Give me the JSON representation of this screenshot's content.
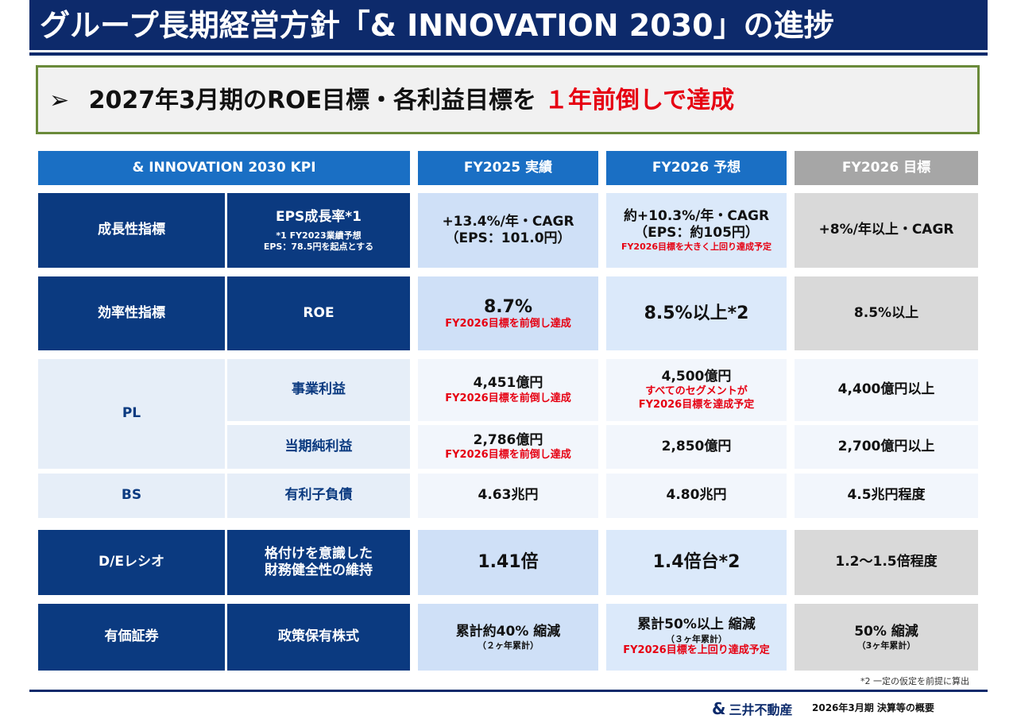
{
  "header": {
    "title": "グループ長期経営方針「& INNOVATION 2030」の進捗",
    "headline_bullet": "➢",
    "headline_main": "2027年3月期のROE目標・各利益目標を",
    "headline_highlight": "１年前倒しで達成"
  },
  "table": {
    "columns": [
      "& INNOVATION 2030 KPI",
      "FY2025 実績",
      "FY2026 予想",
      "FY2026 目標"
    ],
    "rows": {
      "eps": {
        "category": "成長性指標",
        "metric": "EPS成長率*1",
        "metric_note1": "*1 FY2023業績予想",
        "metric_note2": "EPS：78.5円を起点とする",
        "fy25_main": "+13.4%/年・CAGR",
        "fy25_sub": "（EPS：101.0円）",
        "fy26f_main": "約+10.3%/年・CAGR",
        "fy26f_sub": "（EPS：約105円）",
        "fy26f_note": "FY2026目標を大きく上回り達成予定",
        "target": "+8%/年以上・CAGR"
      },
      "roe": {
        "category": "効率性指標",
        "metric": "ROE",
        "fy25_main": "8.7%",
        "fy25_note": "FY2026目標を前倒し達成",
        "fy26f_main": "8.5%以上*2",
        "target": "8.5%以上"
      },
      "pl": {
        "category": "PL",
        "op_metric": "事業利益",
        "op_fy25_main": "4,451億円",
        "op_fy25_note": "FY2026目標を前倒し達成",
        "op_fy26f_main": "4,500億円",
        "op_fy26f_note1": "すべてのセグメントが",
        "op_fy26f_note2": "FY2026目標を達成予定",
        "op_target": "4,400億円以上",
        "ni_metric": "当期純利益",
        "ni_fy25_main": "2,786億円",
        "ni_fy25_note": "FY2026目標を前倒し達成",
        "ni_fy26f_main": "2,850億円",
        "ni_target": "2,700億円以上"
      },
      "bs": {
        "category": "BS",
        "metric": "有利子負債",
        "fy25_main": "4.63兆円",
        "fy26f_main": "4.80兆円",
        "target": "4.5兆円程度"
      },
      "de": {
        "category": "D/Eレシオ",
        "metric_line1": "格付けを意識した",
        "metric_line2": "財務健全性の維持",
        "fy25_main": "1.41倍",
        "fy26f_main": "1.4倍台*2",
        "target": "1.2〜1.5倍程度"
      },
      "sec": {
        "category": "有価証券",
        "metric": "政策保有株式",
        "fy25_main": "累計約40% 縮減",
        "fy25_sub": "（２ヶ年累計）",
        "fy26f_main": "累計50%以上 縮減",
        "fy26f_sub": "（３ヶ年累計）",
        "fy26f_note": "FY2026目標を上回り達成予定",
        "target_main": "50% 縮減",
        "target_sub": "（3ヶ年累計）"
      }
    }
  },
  "footnote": "*2 一定の仮定を前提に算出",
  "footer": {
    "logo_mark": "&",
    "company": "三井不動産",
    "doc_title": "2026年3月期  決算等の概要"
  },
  "colors": {
    "navy": "#0b3a80",
    "header_blue": "#1a6fc4",
    "header_gray": "#a6a6a6",
    "highlight_red": "#e60012"
  }
}
